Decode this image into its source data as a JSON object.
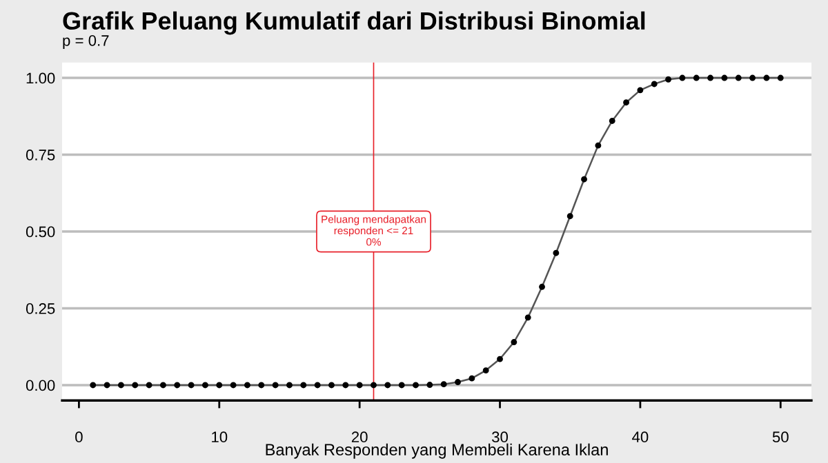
{
  "chart_data": {
    "type": "line",
    "title": "Grafik Peluang Kumulatif dari Distribusi Binomial",
    "subtitle": "p = 0.7",
    "xlabel": "Banyak Responden yang Membeli Karena Iklan",
    "x": [
      1,
      2,
      3,
      4,
      5,
      6,
      7,
      8,
      9,
      10,
      11,
      12,
      13,
      14,
      15,
      16,
      17,
      18,
      19,
      20,
      21,
      22,
      23,
      24,
      25,
      26,
      27,
      28,
      29,
      30,
      31,
      32,
      33,
      34,
      35,
      36,
      37,
      38,
      39,
      40,
      41,
      42,
      43,
      44,
      45,
      46,
      47,
      48,
      49,
      50
    ],
    "series": [
      {
        "color": "#000000",
        "values": [
          0,
          0,
          0,
          0,
          0,
          0,
          0,
          0,
          0,
          0,
          0,
          0,
          0,
          0,
          0,
          0,
          0,
          0,
          0,
          0,
          0,
          0,
          0,
          0,
          0.001,
          0.003,
          0.01,
          0.022,
          0.048,
          0.085,
          0.14,
          0.22,
          0.32,
          0.43,
          0.55,
          0.67,
          0.78,
          0.86,
          0.92,
          0.96,
          0.98,
          0.995,
          1,
          1,
          1,
          1,
          1,
          1,
          1,
          1
        ]
      }
    ],
    "xlim": [
      -1.2,
      52.2
    ],
    "xticks": [
      0,
      10,
      20,
      30,
      40,
      50
    ],
    "ylim": [
      -0.05,
      1.05
    ],
    "yticks": [
      {
        "value": 0,
        "label": "0.00"
      },
      {
        "value": 0.25,
        "label": "0.25"
      },
      {
        "value": 0.5,
        "label": "0.50"
      },
      {
        "value": 0.75,
        "label": "0.75"
      },
      {
        "value": 1,
        "label": "1.00"
      }
    ],
    "ref_lines": [
      {
        "axis": "x",
        "value": 21,
        "label": "Peluang mendapatkan\nresponden <= 21\n0%",
        "color": "#e8202a"
      }
    ],
    "grid": "y",
    "marker": "circle",
    "line_style": "solid",
    "legend": false
  }
}
